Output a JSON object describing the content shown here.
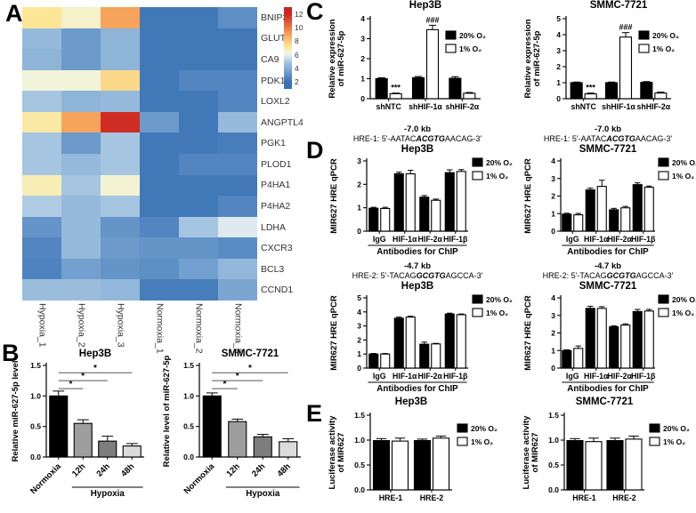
{
  "panel_labels": {
    "A": "A",
    "B": "B",
    "C": "C",
    "D": "D",
    "E": "E"
  },
  "legend_labels": {
    "o2_20": "20% O₂",
    "o2_1": "1% O₂"
  },
  "chart_data": [
    {
      "id": "heatmap-a",
      "type": "heatmap",
      "genes": [
        "BNIP3",
        "GLUT1",
        "CA9",
        "PDK1",
        "LOXL2",
        "ANGPTL4",
        "PGK1",
        "PLOD1",
        "P4HA1",
        "P4HA2",
        "LDHA",
        "CXCR3",
        "BCL3",
        "CCND1"
      ],
      "columns": [
        "Hypoxia_1",
        "Hypoxia_2",
        "Hypoxia_3",
        "Normoxia_1",
        "Normoxia_2",
        "Normoxia_3"
      ],
      "values": [
        [
          7.2,
          6.5,
          9.0,
          2.2,
          2.2,
          3.0
        ],
        [
          4.5,
          3.4,
          4.3,
          2.2,
          2.2,
          2.2
        ],
        [
          4.3,
          3.4,
          4.3,
          2.2,
          2.2,
          2.2
        ],
        [
          6.3,
          6.3,
          7.6,
          2.2,
          2.7,
          2.7
        ],
        [
          4.9,
          4.3,
          4.5,
          2.2,
          2.2,
          2.7
        ],
        [
          7.0,
          9.0,
          11.8,
          3.4,
          2.2,
          4.5
        ],
        [
          4.9,
          3.4,
          4.9,
          2.2,
          2.2,
          2.4
        ],
        [
          4.9,
          4.5,
          4.9,
          2.2,
          2.7,
          2.7
        ],
        [
          6.8,
          4.9,
          6.4,
          2.2,
          2.2,
          2.2
        ],
        [
          5.1,
          4.5,
          4.9,
          2.2,
          2.2,
          2.7
        ],
        [
          3.2,
          4.5,
          3.2,
          2.7,
          4.9,
          5.8
        ],
        [
          2.7,
          4.5,
          3.4,
          3.2,
          3.2,
          2.9
        ],
        [
          2.6,
          3.6,
          3.2,
          3.0,
          3.6,
          4.4
        ],
        [
          4.6,
          4.6,
          4.4,
          2.4,
          2.4,
          3.8
        ]
      ],
      "colorbar_ticks": [
        12,
        10,
        8,
        6,
        4,
        2
      ],
      "colormap_stops": [
        [
          2,
          "#3a72b5"
        ],
        [
          3.5,
          "#6f9dcd"
        ],
        [
          5,
          "#a9c8e2"
        ],
        [
          5.8,
          "#dfeaf0"
        ],
        [
          6.3,
          "#f2f4da"
        ],
        [
          7.2,
          "#fde797"
        ],
        [
          9,
          "#f6a45b"
        ],
        [
          12,
          "#cc2420"
        ]
      ]
    },
    {
      "id": "b-hep3b",
      "type": "bar",
      "title": "Hep3B",
      "ylabel": [
        "Relative miR-627-5p level"
      ],
      "ylim": [
        0,
        1.5
      ],
      "yticks": [
        0,
        0.5,
        1,
        1.5
      ],
      "ydecimals": 1,
      "categories": [
        "Normoxia",
        "12h",
        "24h",
        "48h"
      ],
      "rotate_xticks": true,
      "series": [
        {
          "name": "",
          "values": [
            1.0,
            0.55,
            0.26,
            0.18
          ],
          "errors": [
            0.08,
            0.06,
            0.08,
            0.04
          ]
        }
      ],
      "bar_colors": [
        "#000000",
        "#9e9e9e",
        "#7d7d7d",
        "#dcdcdc"
      ],
      "sig_lines": [
        {
          "from": 0,
          "to": 1,
          "y": 1.12,
          "text": "*"
        },
        {
          "from": 0,
          "to": 2,
          "y": 1.25,
          "text": "*"
        },
        {
          "from": 0,
          "to": 3,
          "y": 1.38,
          "text": "*"
        }
      ],
      "x_bracket": {
        "from": 1,
        "to": 3,
        "label": "Hypoxia"
      }
    },
    {
      "id": "b-smmc",
      "type": "bar",
      "title": "SMMC-7721",
      "ylabel": [
        "Relative level of miR-627-5p"
      ],
      "ylim": [
        0,
        1.5
      ],
      "yticks": [
        0,
        0.5,
        1,
        1.5
      ],
      "ydecimals": 1,
      "categories": [
        "Normoxia",
        "12h",
        "24h",
        "48h"
      ],
      "rotate_xticks": true,
      "series": [
        {
          "name": "",
          "values": [
            1.0,
            0.58,
            0.33,
            0.25
          ],
          "errors": [
            0.05,
            0.04,
            0.04,
            0.05
          ]
        }
      ],
      "bar_colors": [
        "#000000",
        "#9e9e9e",
        "#7d7d7d",
        "#dcdcdc"
      ],
      "sig_lines": [
        {
          "from": 0,
          "to": 1,
          "y": 1.12,
          "text": "*"
        },
        {
          "from": 0,
          "to": 2,
          "y": 1.25,
          "text": "*"
        },
        {
          "from": 0,
          "to": 3,
          "y": 1.38,
          "text": "*"
        }
      ],
      "x_bracket": {
        "from": 1,
        "to": 3,
        "label": "Hypoxia"
      }
    },
    {
      "id": "c-hep3b",
      "type": "bar",
      "title": "Hep3B",
      "ylabel": [
        "Relative expression",
        "of miR-627-5p"
      ],
      "ylim": [
        0,
        4
      ],
      "yticks": [
        0,
        1,
        2,
        3,
        4
      ],
      "ydecimals": 0,
      "categories": [
        "shNTC",
        "shHIF-1α",
        "shHIF-2α"
      ],
      "series": [
        {
          "name": "20% O₂",
          "values": [
            1.0,
            1.05,
            1.02
          ],
          "errors": [
            0.05,
            0.06,
            0.08
          ]
        },
        {
          "name": "1% O₂",
          "values": [
            0.25,
            3.45,
            0.27
          ],
          "errors": [
            0.03,
            0.22,
            0.04
          ]
        }
      ],
      "legend": true,
      "annotations": [
        {
          "cat": 0,
          "series": 1,
          "text": "***"
        },
        {
          "cat": 1,
          "series": 1,
          "text": "###"
        }
      ]
    },
    {
      "id": "c-smmc",
      "type": "bar",
      "title": "SMMC-7721",
      "ylabel": [
        "Relative expression",
        "of miR-627-5p"
      ],
      "ylim": [
        0,
        5
      ],
      "yticks": [
        0,
        1,
        2,
        3,
        4,
        5
      ],
      "ydecimals": 0,
      "categories": [
        "shNTC",
        "shHIF-1α",
        "shHIF-2α"
      ],
      "series": [
        {
          "name": "20% O₂",
          "values": [
            1.0,
            1.0,
            1.02
          ],
          "errors": [
            0.04,
            0.04,
            0.05
          ]
        },
        {
          "name": "1% O₂",
          "values": [
            0.3,
            3.85,
            0.35
          ],
          "errors": [
            0.05,
            0.28,
            0.06
          ]
        }
      ],
      "legend": true,
      "annotations": [
        {
          "cat": 0,
          "series": 1,
          "text": "***"
        },
        {
          "cat": 1,
          "series": 1,
          "text": "###"
        }
      ]
    },
    {
      "id": "d-hre1-hep3b",
      "type": "bar",
      "kb_label": "-7.0 kb",
      "sequence": {
        "pre": "HRE-1: 5'-AATAC",
        "core": "ACGTG",
        "post": "AACAG-3'"
      },
      "title": "Hep3B",
      "ylabel": [
        "MIR627 HRE qPCR"
      ],
      "ylim": [
        0,
        3
      ],
      "yticks": [
        0,
        1,
        2,
        3
      ],
      "ydecimals": 0,
      "categories": [
        "IgG",
        "HIF-1α",
        "HIF-2α",
        "HIF-1β"
      ],
      "series": [
        {
          "name": "20% O₂",
          "values": [
            0.98,
            2.45,
            1.45,
            2.5
          ],
          "errors": [
            0.04,
            0.07,
            0.07,
            0.12
          ]
        },
        {
          "name": "1% O₂",
          "values": [
            0.97,
            2.45,
            1.32,
            2.55
          ],
          "errors": [
            0.05,
            0.15,
            0.05,
            0.08
          ]
        }
      ],
      "legend": true,
      "x_bracket": {
        "from": 0,
        "to": 3,
        "label": "Antibodies for ChIP"
      }
    },
    {
      "id": "d-hre1-smmc",
      "type": "bar",
      "kb_label": "-7.0 kb",
      "sequence": {
        "pre": "HRE-1: 5'-AATAC",
        "core": "ACGTG",
        "post": "AACAG-3'"
      },
      "title": "SMMC-7721",
      "ylabel": [
        "MIR627 HRE qPCR"
      ],
      "ylim": [
        0,
        4
      ],
      "yticks": [
        0,
        1,
        2,
        3,
        4
      ],
      "ydecimals": 0,
      "categories": [
        "IgG",
        "HIF-1α",
        "HIF-2α",
        "HIF-1β"
      ],
      "series": [
        {
          "name": "20% O₂",
          "values": [
            0.97,
            2.35,
            1.22,
            2.65
          ],
          "errors": [
            0.05,
            0.1,
            0.08,
            0.1
          ]
        },
        {
          "name": "1% O₂",
          "values": [
            0.93,
            2.55,
            1.33,
            2.5
          ],
          "errors": [
            0.08,
            0.35,
            0.08,
            0.07
          ]
        }
      ],
      "legend": true,
      "x_bracket": {
        "from": 0,
        "to": 3,
        "label": "Antibodies for ChIP"
      }
    },
    {
      "id": "d-hre2-hep3b",
      "type": "bar",
      "kb_label": "-4.7 kb",
      "sequence": {
        "pre": "HRE-2: 5'-TACAG",
        "core": "GCGTG",
        "post": "AGCCA-3'"
      },
      "title": "Hep3B",
      "ylabel": [
        "MIR627 HRE qPCR"
      ],
      "ylim": [
        0,
        5
      ],
      "yticks": [
        0,
        1,
        2,
        3,
        4,
        5
      ],
      "ydecimals": 0,
      "categories": [
        "IgG",
        "HIF-1α",
        "HIF-2α",
        "HIF-1β"
      ],
      "series": [
        {
          "name": "20% O₂",
          "values": [
            1.0,
            3.55,
            1.7,
            3.85
          ],
          "errors": [
            0.04,
            0.08,
            0.15,
            0.06
          ]
        },
        {
          "name": "1% O₂",
          "values": [
            1.0,
            3.63,
            1.72,
            3.8
          ],
          "errors": [
            0.04,
            0.06,
            0.04,
            0.05
          ]
        }
      ],
      "legend": true,
      "x_bracket": {
        "from": 0,
        "to": 3,
        "label": "Antibodies for ChIP"
      }
    },
    {
      "id": "d-hre2-smmc",
      "type": "bar",
      "kb_label": "-4.7 kb",
      "sequence": {
        "pre": "HRE-2: 5'-TACAG",
        "core": "GCGTG",
        "post": "AGCCA-3'"
      },
      "title": "SMMC-7721",
      "ylabel": [
        "MIR627 HRE qPCR"
      ],
      "ylim": [
        0,
        4
      ],
      "yticks": [
        0,
        1,
        2,
        3,
        4
      ],
      "ydecimals": 0,
      "categories": [
        "IgG",
        "HIF-1α",
        "HIF-2α",
        "HIF-1β"
      ],
      "series": [
        {
          "name": "20% O₂",
          "values": [
            1.0,
            3.4,
            2.35,
            3.22
          ],
          "errors": [
            0.04,
            0.12,
            0.06,
            0.12
          ]
        },
        {
          "name": "1% O₂",
          "values": [
            1.12,
            3.4,
            2.45,
            3.25
          ],
          "errors": [
            0.14,
            0.1,
            0.07,
            0.09
          ]
        }
      ],
      "legend": true,
      "x_bracket": {
        "from": 0,
        "to": 3,
        "label": "Antibodies for ChIP"
      }
    },
    {
      "id": "e-hep3b",
      "type": "bar",
      "title": "Hep3B",
      "ylabel": [
        "Luciferase activity",
        "of MIR627"
      ],
      "ylim": [
        0,
        1.5
      ],
      "yticks": [
        0,
        0.5,
        1,
        1.5
      ],
      "ydecimals": 1,
      "categories": [
        "HRE-1",
        "HRE-2"
      ],
      "series": [
        {
          "name": "20% O₂",
          "values": [
            0.99,
            0.99
          ],
          "errors": [
            0.04,
            0.03
          ]
        },
        {
          "name": "1% O₂",
          "values": [
            0.98,
            1.04
          ],
          "errors": [
            0.06,
            0.04
          ]
        }
      ],
      "legend": true
    },
    {
      "id": "e-smmc",
      "type": "bar",
      "title": "SMMC-7721",
      "ylabel": [
        "Luciferase activity",
        "of MIR627"
      ],
      "ylim": [
        0,
        1.5
      ],
      "yticks": [
        0,
        0.5,
        1,
        1.5
      ],
      "ydecimals": 1,
      "categories": [
        "HRE-1",
        "HRE-2"
      ],
      "series": [
        {
          "name": "20% O₂",
          "values": [
            0.99,
            0.99
          ],
          "errors": [
            0.04,
            0.05
          ]
        },
        {
          "name": "1% O₂",
          "values": [
            0.97,
            1.02
          ],
          "errors": [
            0.07,
            0.06
          ]
        }
      ],
      "legend": true
    }
  ]
}
